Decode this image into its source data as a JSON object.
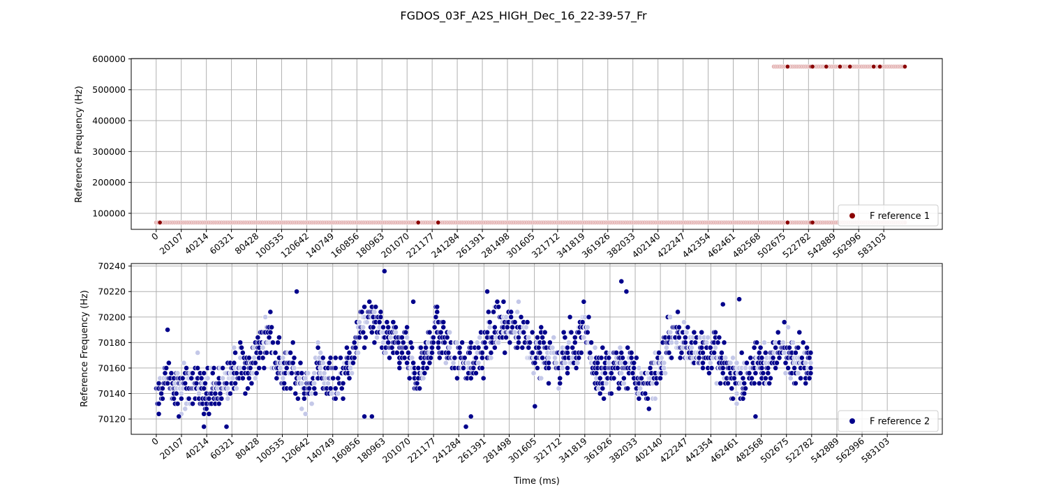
{
  "figure": {
    "title": "FGDOS_03F_A2S_HIGH_Dec_16_22-39-57_Fr"
  },
  "colors": {
    "series1": "#8b0000",
    "series1_light": "#e4b4b4",
    "series2": "#00008b",
    "series2_light": "#c4c8e8",
    "grid": "#b0b0b0",
    "axis": "#000000"
  },
  "chart_data": [
    {
      "type": "scatter",
      "ylabel": "Reference Frequency (Hz)",
      "xlabel": "",
      "xlim": [
        -20000,
        630000
      ],
      "ylim": [
        48000,
        601000
      ],
      "grid": true,
      "legend": {
        "position": "bottom-right",
        "label": "F reference 1"
      },
      "xticks": [
        0,
        20107,
        40214,
        60321,
        80428,
        100535,
        120642,
        140749,
        160856,
        180963,
        201070,
        221177,
        241284,
        261391,
        281498,
        301605,
        321712,
        341819,
        361926,
        382033,
        402140,
        422247,
        442354,
        462461,
        482568,
        502675,
        522782,
        542889,
        562996,
        583103
      ],
      "xticklabels": [
        "0",
        "20107",
        "40214",
        "60321",
        "80428",
        "100535",
        "120642",
        "140749",
        "160856",
        "180963",
        "201070",
        "221177",
        "241284",
        "261391",
        "281498",
        "301605",
        "321712",
        "341819",
        "361926",
        "382033",
        "402140",
        "422247",
        "442354",
        "462461",
        "482568",
        "502675",
        "522782",
        "542889",
        "562996",
        "583103"
      ],
      "yticks": [
        100000,
        200000,
        300000,
        400000,
        500000,
        600000
      ],
      "yticklabels": [
        "100000",
        "200000",
        "300000",
        "400000",
        "500000",
        "600000"
      ],
      "series": [
        {
          "name": "F reference 1",
          "segments": [
            {
              "x_start": 0,
              "x_end": 600000,
              "x_step": 1500,
              "y": 70170
            },
            {
              "x_start": 495000,
              "x_end": 601000,
              "x_step": 1500,
              "y": 575000
            }
          ],
          "highlight_points": [
            {
              "x": 3000,
              "y": 70170
            },
            {
              "x": 210000,
              "y": 70170
            },
            {
              "x": 226000,
              "y": 70170
            },
            {
              "x": 506000,
              "y": 70170
            },
            {
              "x": 525000,
              "y": 70170
            },
            {
              "x": 526000,
              "y": 70170
            },
            {
              "x": 506000,
              "y": 575000
            },
            {
              "x": 525000,
              "y": 575000
            },
            {
              "x": 526000,
              "y": 575000
            },
            {
              "x": 537000,
              "y": 575000
            },
            {
              "x": 548000,
              "y": 575000
            },
            {
              "x": 556000,
              "y": 575000
            },
            {
              "x": 575000,
              "y": 575000
            },
            {
              "x": 580000,
              "y": 575000
            },
            {
              "x": 600000,
              "y": 575000
            }
          ]
        }
      ]
    },
    {
      "type": "scatter",
      "ylabel": "Reference Frequency (Hz)",
      "xlabel": "Time (ms)",
      "xlim": [
        -20000,
        627000
      ],
      "ylim": [
        70108,
        70242
      ],
      "grid": true,
      "legend": {
        "position": "bottom-right",
        "label": "F reference 2"
      },
      "xticks": [
        0,
        20107,
        40214,
        60321,
        80428,
        100535,
        120642,
        140749,
        160856,
        180963,
        201070,
        221177,
        241284,
        261391,
        281498,
        301605,
        321712,
        341819,
        361926,
        382033,
        402140,
        422247,
        442354,
        462461,
        482568,
        502675,
        522782,
        542889,
        562996,
        583103
      ],
      "xticklabels": [
        "0",
        "20107",
        "40214",
        "60321",
        "80428",
        "100535",
        "120642",
        "140749",
        "160856",
        "180963",
        "201070",
        "221177",
        "241284",
        "261391",
        "281498",
        "301605",
        "321712",
        "341819",
        "361926",
        "382033",
        "402140",
        "422247",
        "442354",
        "462461",
        "482568",
        "502675",
        "522782",
        "542889",
        "562996",
        "583103"
      ],
      "yticks": [
        70120,
        70140,
        70160,
        70180,
        70200,
        70220,
        70240
      ],
      "yticklabels": [
        "70120",
        "70140",
        "70160",
        "70180",
        "70200",
        "70220",
        "70240"
      ],
      "series": [
        {
          "name": "F reference 2",
          "x_start": 0,
          "x_end": 522000,
          "x_step": 1000,
          "y_quantum": 4,
          "anchors": [
            [
              0,
              70138
            ],
            [
              8000,
              70150
            ],
            [
              12000,
              70145
            ],
            [
              20000,
              70142
            ],
            [
              30000,
              70152
            ],
            [
              40000,
              70137
            ],
            [
              48000,
              70142
            ],
            [
              55000,
              70150
            ],
            [
              65000,
              70162
            ],
            [
              75000,
              70158
            ],
            [
              82000,
              70175
            ],
            [
              90000,
              70190
            ],
            [
              95000,
              70170
            ],
            [
              102000,
              70155
            ],
            [
              108000,
              70158
            ],
            [
              115000,
              70150
            ],
            [
              122000,
              70140
            ],
            [
              130000,
              70162
            ],
            [
              138000,
              70150
            ],
            [
              145000,
              70148
            ],
            [
              152000,
              70162
            ],
            [
              160000,
              70180
            ],
            [
              168000,
              70200
            ],
            [
              175000,
              70200
            ],
            [
              182000,
              70180
            ],
            [
              190000,
              70178
            ],
            [
              198000,
              70175
            ],
            [
              208000,
              70150
            ],
            [
              215000,
              70165
            ],
            [
              222000,
              70195
            ],
            [
              230000,
              70180
            ],
            [
              240000,
              70168
            ],
            [
              250000,
              70162
            ],
            [
              258000,
              70170
            ],
            [
              265000,
              70185
            ],
            [
              272000,
              70192
            ],
            [
              280000,
              70190
            ],
            [
              290000,
              70190
            ],
            [
              298000,
              70178
            ],
            [
              305000,
              70175
            ],
            [
              312000,
              70170
            ],
            [
              320000,
              70165
            ],
            [
              326000,
              70168
            ],
            [
              330000,
              70175
            ],
            [
              336000,
              70178
            ],
            [
              342000,
              70200
            ],
            [
              348000,
              70165
            ],
            [
              352000,
              70152
            ],
            [
              360000,
              70158
            ],
            [
              368000,
              70165
            ],
            [
              376000,
              70158
            ],
            [
              385000,
              70150
            ],
            [
              392000,
              70145
            ],
            [
              398000,
              70155
            ],
            [
              405000,
              70168
            ],
            [
              412000,
              70188
            ],
            [
              420000,
              70180
            ],
            [
              430000,
              70175
            ],
            [
              438000,
              70172
            ],
            [
              445000,
              70172
            ],
            [
              452000,
              70160
            ],
            [
              460000,
              70155
            ],
            [
              468000,
              70150
            ],
            [
              475000,
              70162
            ],
            [
              482000,
              70160
            ],
            [
              490000,
              70165
            ],
            [
              497000,
              70175
            ],
            [
              505000,
              70172
            ],
            [
              512000,
              70170
            ],
            [
              522000,
              70162
            ]
          ],
          "outliers": [
            {
              "x": 9000,
              "y": 70190
            },
            {
              "x": 18000,
              "y": 70122
            },
            {
              "x": 38000,
              "y": 70114
            },
            {
              "x": 56000,
              "y": 70114
            },
            {
              "x": 112000,
              "y": 70220
            },
            {
              "x": 166000,
              "y": 70122
            },
            {
              "x": 172000,
              "y": 70122
            },
            {
              "x": 182000,
              "y": 70236
            },
            {
              "x": 205000,
              "y": 70212
            },
            {
              "x": 247000,
              "y": 70114
            },
            {
              "x": 251000,
              "y": 70122
            },
            {
              "x": 264000,
              "y": 70220
            },
            {
              "x": 302000,
              "y": 70130
            },
            {
              "x": 371000,
              "y": 70228
            },
            {
              "x": 375000,
              "y": 70220
            },
            {
              "x": 465000,
              "y": 70214
            },
            {
              "x": 478000,
              "y": 70122
            },
            {
              "x": 452000,
              "y": 70210
            }
          ]
        }
      ]
    }
  ]
}
